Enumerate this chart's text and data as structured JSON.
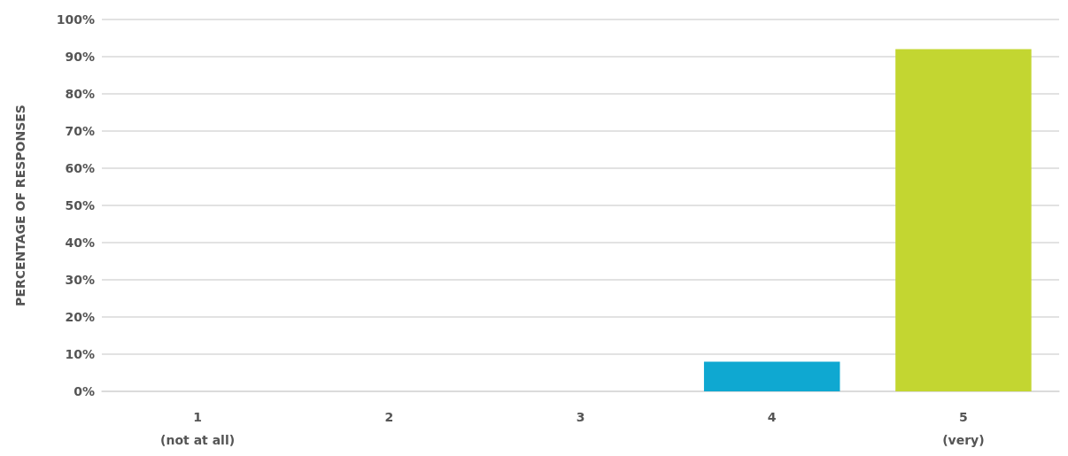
{
  "chart_data": {
    "type": "bar",
    "ylabel": "PERCENTAGE OF RESPONSES",
    "categories": [
      "1\n(not at all)",
      "2",
      "3",
      "4",
      "5\n(very)"
    ],
    "values": [
      0,
      0,
      0,
      8,
      92
    ],
    "colors": [
      "#0fa8d1",
      "#0fa8d1",
      "#0fa8d1",
      "#0fa8d1",
      "#c3d631"
    ],
    "ylim": [
      0,
      100
    ],
    "yticks": [
      {
        "value": 0,
        "label": "0%"
      },
      {
        "value": 10,
        "label": "10%"
      },
      {
        "value": 20,
        "label": "20%"
      },
      {
        "value": 30,
        "label": "30%"
      },
      {
        "value": 40,
        "label": "40%"
      },
      {
        "value": 50,
        "label": "50%"
      },
      {
        "value": 60,
        "label": "60%"
      },
      {
        "value": 70,
        "label": "70%"
      },
      {
        "value": 80,
        "label": "80%"
      },
      {
        "value": 90,
        "label": "90%"
      },
      {
        "value": 100,
        "label": "100%"
      }
    ],
    "grid": true
  }
}
